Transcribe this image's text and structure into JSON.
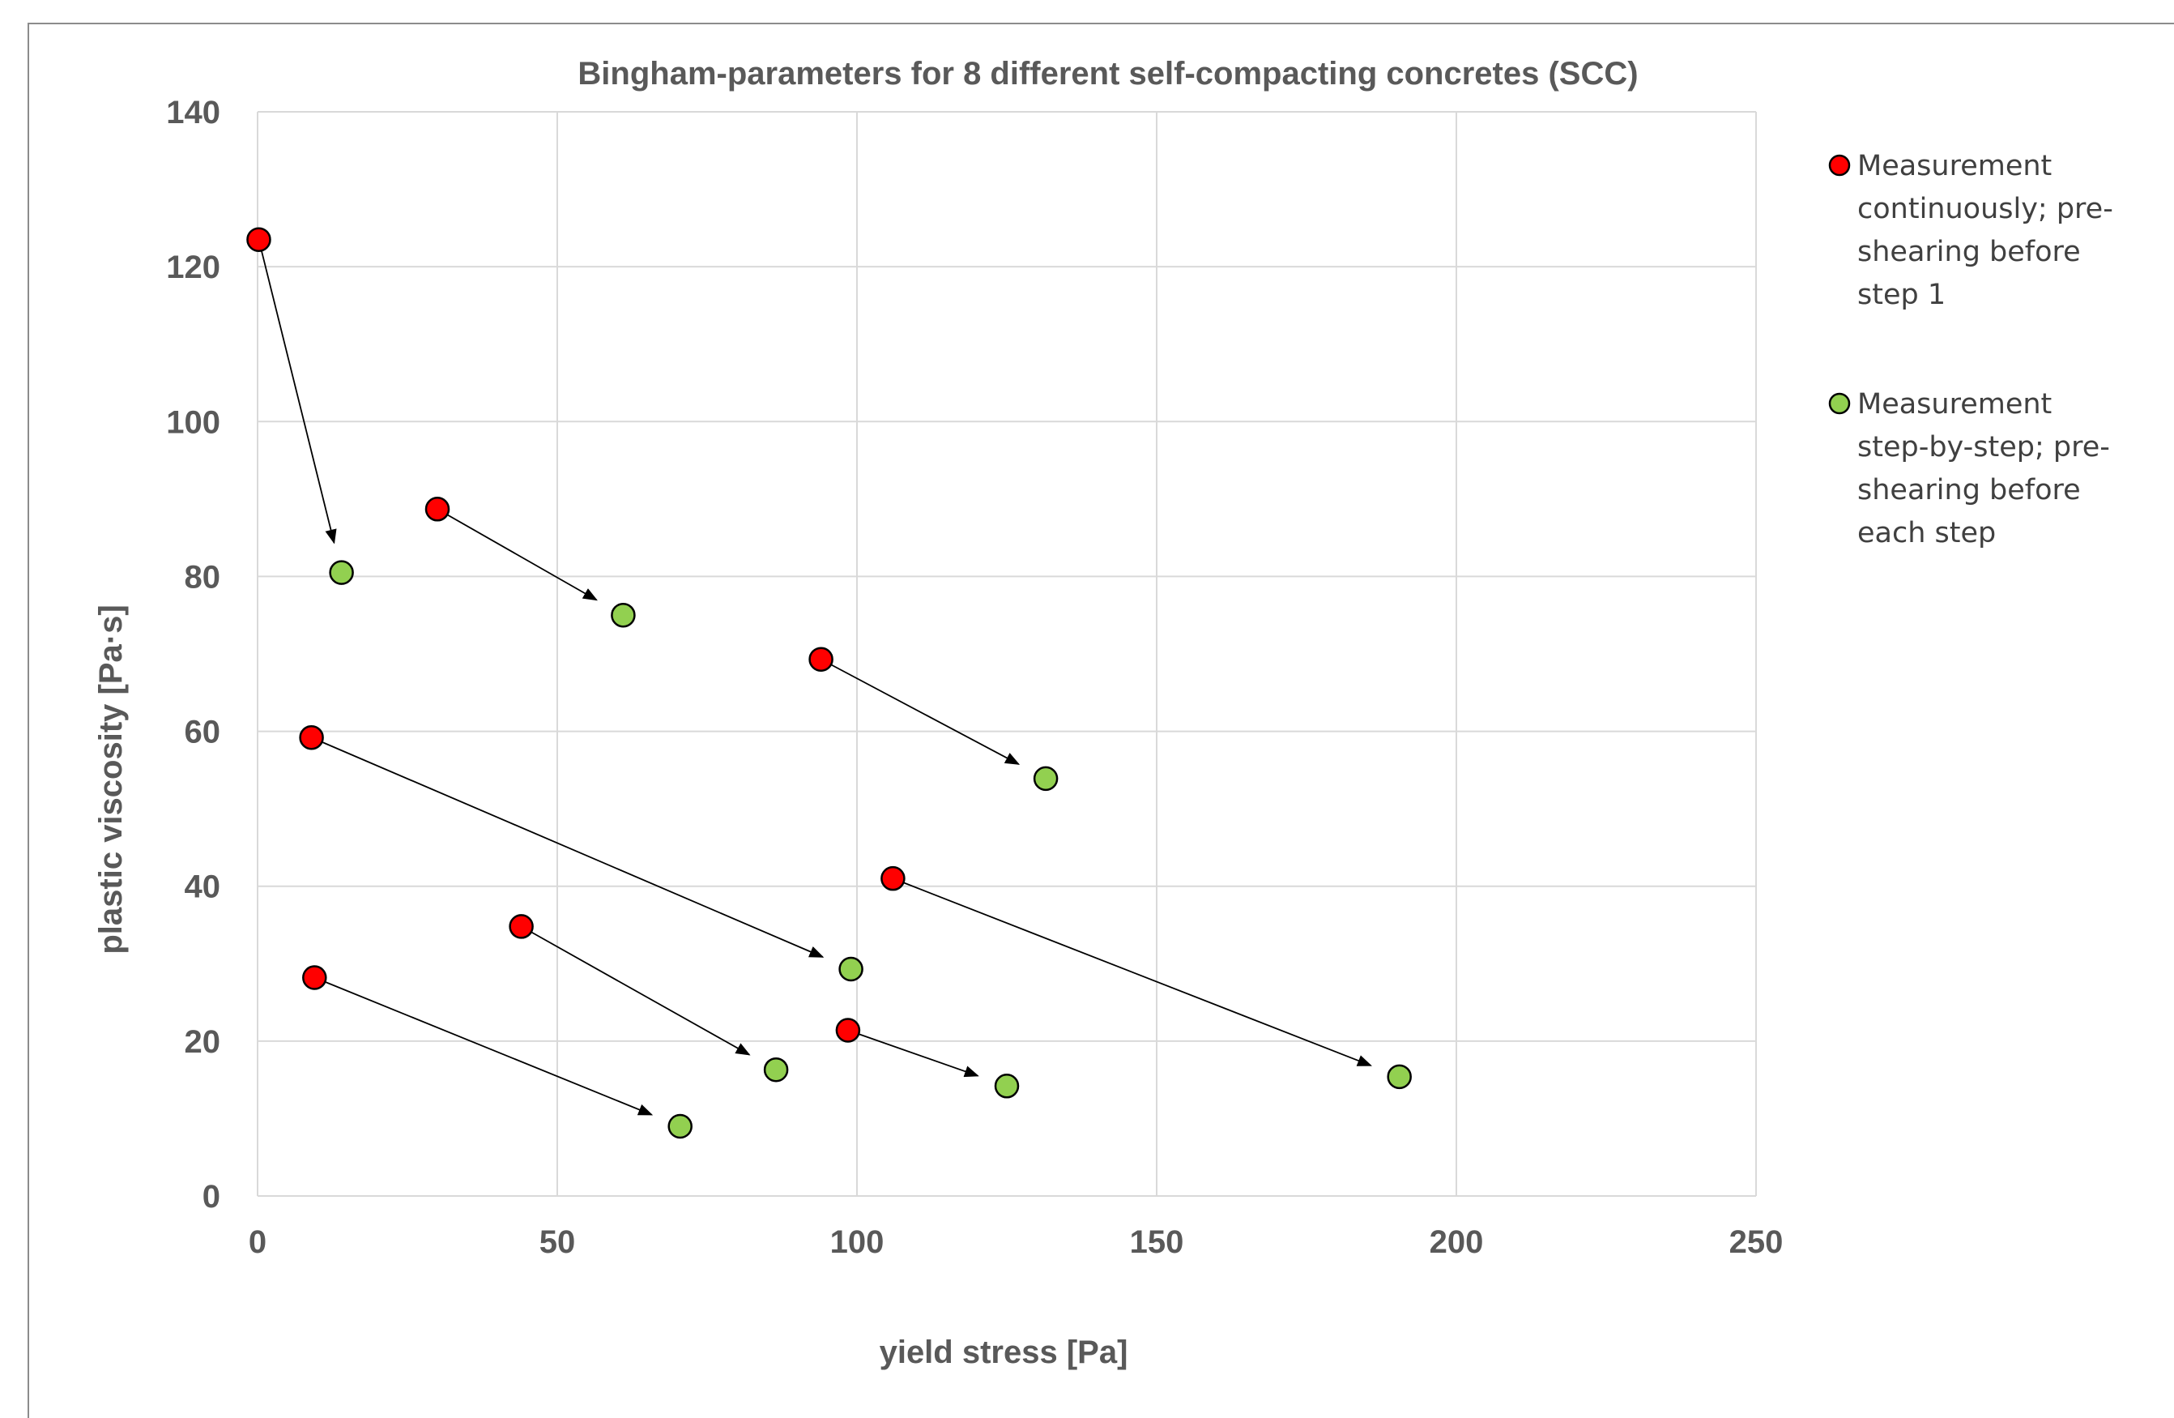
{
  "chart_data": {
    "type": "scatter",
    "title": "Bingham-parameters for 8 different self-compacting concretes (SCC)",
    "xlabel": "yield stress [Pa]",
    "ylabel": "plastic viscosity [Pa·s]",
    "xlim": [
      0,
      250
    ],
    "ylim": [
      0,
      140
    ],
    "x_ticks": [
      "0",
      "50",
      "100",
      "150",
      "200",
      "250"
    ],
    "y_ticks": [
      "0",
      "20",
      "40",
      "60",
      "80",
      "100",
      "120",
      "140"
    ],
    "grid": true,
    "legend_position": "right",
    "series": [
      {
        "name": "Measurement continuously; pre-shearing before step 1",
        "legend_lines": [
          "Measurement",
          "continuously; pre-",
          "shearing before",
          "step 1"
        ],
        "color": "#ff0000",
        "points": [
          {
            "x": 0.2,
            "y": 123.5
          },
          {
            "x": 30,
            "y": 88.7
          },
          {
            "x": 94,
            "y": 69.3
          },
          {
            "x": 9,
            "y": 59.2
          },
          {
            "x": 106,
            "y": 41.0
          },
          {
            "x": 44,
            "y": 34.8
          },
          {
            "x": 9.5,
            "y": 28.2
          },
          {
            "x": 98.5,
            "y": 21.4
          }
        ]
      },
      {
        "name": "Measurement step-by-step; pre-shearing before each step",
        "legend_lines": [
          "Measurement",
          "step-by-step; pre-",
          "shearing before",
          "each step"
        ],
        "color": "#92d050",
        "points": [
          {
            "x": 14,
            "y": 80.5
          },
          {
            "x": 61,
            "y": 75.0
          },
          {
            "x": 131.5,
            "y": 53.9
          },
          {
            "x": 99,
            "y": 29.3
          },
          {
            "x": 190.5,
            "y": 15.4
          },
          {
            "x": 86.5,
            "y": 16.3
          },
          {
            "x": 70.5,
            "y": 9.0
          },
          {
            "x": 125,
            "y": 14.2
          }
        ]
      }
    ],
    "arrows": [
      {
        "from": [
          0.2,
          123.5
        ],
        "to": [
          14,
          80.5
        ]
      },
      {
        "from": [
          30,
          88.7
        ],
        "to": [
          61,
          75.0
        ]
      },
      {
        "from": [
          94,
          69.3
        ],
        "to": [
          131.5,
          53.9
        ]
      },
      {
        "from": [
          9,
          59.2
        ],
        "to": [
          99,
          29.3
        ]
      },
      {
        "from": [
          106,
          41.0
        ],
        "to": [
          190.5,
          15.4
        ]
      },
      {
        "from": [
          44,
          34.8
        ],
        "to": [
          86.5,
          16.3
        ]
      },
      {
        "from": [
          9.5,
          28.2
        ],
        "to": [
          70.5,
          9.0
        ]
      },
      {
        "from": [
          98.5,
          21.4
        ],
        "to": [
          125,
          14.2
        ]
      }
    ]
  }
}
